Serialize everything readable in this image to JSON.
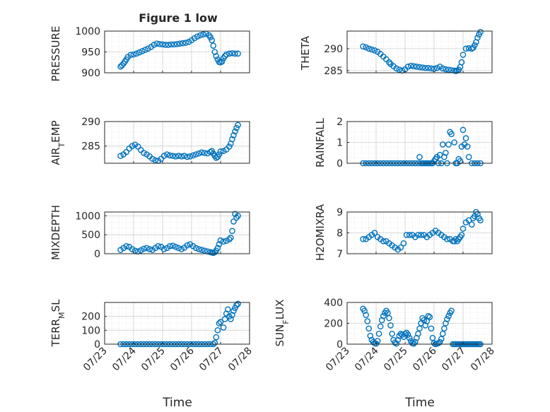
{
  "figure": {
    "title": "Figure 1 low",
    "xlabel": "Time"
  },
  "colors": {
    "marker": "#0072BD",
    "grid": "#d9d9d9",
    "axes": "#262626"
  },
  "chart_data": [
    {
      "type": "scatter",
      "ylabel": "PRESSURE",
      "ylim": [
        900,
        1000
      ],
      "yticks": [
        "900",
        "950",
        "1000"
      ],
      "xlim": [
        "07/23",
        "07/28"
      ],
      "grid": true,
      "x_days": [
        23.55,
        23.6,
        23.65,
        23.7,
        23.75,
        23.8,
        23.9,
        24.0,
        24.1,
        24.2,
        24.3,
        24.4,
        24.5,
        24.6,
        24.7,
        24.8,
        24.9,
        25.0,
        25.1,
        25.2,
        25.3,
        25.4,
        25.5,
        25.6,
        25.7,
        25.8,
        25.9,
        26.0,
        26.1,
        26.2,
        26.3,
        26.4,
        26.5,
        26.6,
        26.65,
        26.7,
        26.75,
        26.8,
        26.85,
        26.9,
        26.95,
        27.0,
        27.05,
        27.1,
        27.15,
        27.2,
        27.3,
        27.4,
        27.5,
        27.6
      ],
      "y": [
        915,
        918,
        922,
        927,
        932,
        938,
        943,
        944,
        946,
        949,
        952,
        955,
        958,
        962,
        967,
        970,
        969,
        968,
        967,
        967,
        968,
        968,
        969,
        970,
        971,
        972,
        974,
        978,
        983,
        987,
        990,
        992,
        994,
        990,
        985,
        978,
        965,
        950,
        940,
        932,
        926,
        925,
        927,
        935,
        940,
        944,
        946,
        947,
        946,
        946
      ]
    },
    {
      "type": "scatter",
      "ylabel": "THETA",
      "ylim": [
        284.5,
        294
      ],
      "yticks": [
        "285",
        "290"
      ],
      "xlim": [
        "07/23",
        "07/28"
      ],
      "grid": true,
      "x_days": [
        23.55,
        23.65,
        23.75,
        23.85,
        23.95,
        24.05,
        24.15,
        24.25,
        24.35,
        24.45,
        24.5,
        24.6,
        24.7,
        24.8,
        24.9,
        25.0,
        25.1,
        25.2,
        25.3,
        25.4,
        25.5,
        25.6,
        25.7,
        25.8,
        25.9,
        26.0,
        26.1,
        26.2,
        26.3,
        26.4,
        26.5,
        26.6,
        26.7,
        26.75,
        26.8,
        26.85,
        26.9,
        26.95,
        27.0,
        27.1,
        27.2,
        27.3,
        27.35,
        27.4,
        27.45,
        27.5,
        27.55,
        27.6
      ],
      "y": [
        290.5,
        290.3,
        290.0,
        289.8,
        289.6,
        289.3,
        288.8,
        288.2,
        287.6,
        286.9,
        286.5,
        286.0,
        285.5,
        285.2,
        285.0,
        285.3,
        285.9,
        286.1,
        286.0,
        285.9,
        285.8,
        285.7,
        285.6,
        285.6,
        285.5,
        285.4,
        285.6,
        285.9,
        285.5,
        285.3,
        285.2,
        285.1,
        285.0,
        284.9,
        285.0,
        285.2,
        285.8,
        286.9,
        288.6,
        290.0,
        290.1,
        290.0,
        290.2,
        290.8,
        291.5,
        292.5,
        293.2,
        293.8
      ]
    },
    {
      "type": "scatter",
      "ylabel": "AIR_TEMP",
      "ylim": [
        281.5,
        290
      ],
      "yticks": [
        "285",
        "290"
      ],
      "xlim": [
        "07/23",
        "07/28"
      ],
      "grid": true,
      "x_days": [
        23.55,
        23.65,
        23.75,
        23.85,
        23.95,
        24.05,
        24.15,
        24.25,
        24.35,
        24.45,
        24.55,
        24.65,
        24.75,
        24.85,
        24.95,
        25.05,
        25.15,
        25.25,
        25.35,
        25.45,
        25.55,
        25.65,
        25.75,
        25.85,
        25.95,
        26.05,
        26.15,
        26.25,
        26.35,
        26.45,
        26.55,
        26.65,
        26.7,
        26.75,
        26.8,
        26.85,
        26.9,
        26.95,
        27.0,
        27.1,
        27.2,
        27.3,
        27.35,
        27.4,
        27.45,
        27.5,
        27.55,
        27.6
      ],
      "y": [
        283.0,
        283.3,
        283.8,
        284.5,
        285.0,
        285.3,
        284.9,
        284.2,
        283.6,
        283.3,
        282.9,
        282.4,
        282.1,
        282.0,
        282.4,
        283.0,
        283.3,
        283.1,
        283.0,
        282.9,
        283.0,
        282.9,
        283.0,
        282.8,
        282.9,
        283.1,
        283.3,
        283.5,
        283.7,
        283.6,
        283.5,
        283.8,
        284.0,
        283.5,
        283.0,
        282.6,
        282.8,
        283.3,
        283.9,
        284.0,
        284.3,
        284.9,
        285.5,
        286.4,
        287.2,
        288.0,
        288.7,
        289.3
      ]
    },
    {
      "type": "scatter",
      "ylabel": "RAINFALL",
      "ylim": [
        0,
        2
      ],
      "yticks": [
        "0",
        "1",
        "2"
      ],
      "xlim": [
        "07/23",
        "07/28"
      ],
      "grid": true,
      "x_days": [
        23.55,
        23.65,
        23.75,
        23.85,
        23.95,
        24.05,
        24.15,
        24.25,
        24.35,
        24.45,
        24.55,
        24.65,
        24.75,
        24.85,
        24.95,
        25.05,
        25.15,
        25.25,
        25.35,
        25.45,
        25.5,
        25.55,
        25.65,
        25.75,
        25.85,
        25.95,
        26.0,
        26.05,
        26.1,
        26.15,
        26.2,
        26.25,
        26.3,
        26.35,
        26.4,
        26.45,
        26.5,
        26.55,
        26.6,
        26.7,
        26.75,
        26.8,
        26.85,
        26.9,
        26.95,
        27.0,
        27.05,
        27.1,
        27.15,
        27.2,
        27.3,
        27.4,
        27.5,
        27.6,
        25.6,
        25.7,
        25.8,
        25.9
      ],
      "y": [
        0,
        0,
        0,
        0,
        0,
        0,
        0,
        0,
        0,
        0,
        0,
        0,
        0,
        0,
        0,
        0,
        0,
        0,
        0,
        0,
        0.3,
        0,
        0,
        0,
        0,
        0,
        0.1,
        0.2,
        0.3,
        0,
        0.4,
        0,
        0.9,
        0.3,
        0.5,
        0,
        0.9,
        1.5,
        1.4,
        1.0,
        0,
        0,
        0.2,
        0.1,
        0.8,
        1.6,
        0.9,
        1.2,
        0.8,
        0.3,
        0,
        0,
        0,
        0,
        0,
        0,
        0,
        0
      ]
    },
    {
      "type": "scatter",
      "ylabel": "MIXDEPTH",
      "ylim": [
        0,
        1100
      ],
      "yticks": [
        "0",
        "500",
        "1000"
      ],
      "xlim": [
        "07/23",
        "07/28"
      ],
      "grid": true,
      "x_days": [
        23.55,
        23.65,
        23.75,
        23.85,
        23.95,
        24.05,
        24.15,
        24.25,
        24.35,
        24.45,
        24.55,
        24.65,
        24.75,
        24.85,
        24.95,
        25.05,
        25.15,
        25.25,
        25.35,
        25.45,
        25.55,
        25.65,
        25.75,
        25.85,
        25.95,
        26.05,
        26.15,
        26.25,
        26.35,
        26.45,
        26.55,
        26.65,
        26.7,
        26.75,
        26.8,
        26.85,
        26.9,
        26.95,
        27.0,
        27.1,
        27.2,
        27.3,
        27.35,
        27.4,
        27.45,
        27.5,
        27.55,
        27.6
      ],
      "y": [
        100,
        150,
        200,
        180,
        120,
        80,
        60,
        90,
        130,
        150,
        120,
        100,
        150,
        200,
        180,
        120,
        150,
        200,
        210,
        180,
        150,
        120,
        160,
        220,
        250,
        200,
        150,
        120,
        100,
        80,
        60,
        40,
        30,
        20,
        40,
        80,
        150,
        250,
        350,
        320,
        340,
        380,
        420,
        600,
        850,
        1050,
        950,
        1000
      ]
    },
    {
      "type": "scatter",
      "ylabel": "H2OMIXRA",
      "ylim": [
        7,
        9
      ],
      "yticks": [
        "7",
        "8",
        "9"
      ],
      "xlim": [
        "07/23",
        "07/28"
      ],
      "grid": true,
      "x_days": [
        23.55,
        23.65,
        23.75,
        23.85,
        23.95,
        24.05,
        24.15,
        24.25,
        24.35,
        24.45,
        24.55,
        24.65,
        24.75,
        24.85,
        24.95,
        25.05,
        25.15,
        25.25,
        25.35,
        25.45,
        25.55,
        25.65,
        25.75,
        25.85,
        25.95,
        26.05,
        26.15,
        26.25,
        26.35,
        26.45,
        26.55,
        26.65,
        26.7,
        26.75,
        26.8,
        26.85,
        26.9,
        26.95,
        27.0,
        27.1,
        27.2,
        27.3,
        27.35,
        27.4,
        27.45,
        27.5,
        27.55,
        27.6
      ],
      "y": [
        7.7,
        7.7,
        7.8,
        7.9,
        8.0,
        7.8,
        7.7,
        7.6,
        7.6,
        7.5,
        7.4,
        7.3,
        7.2,
        7.3,
        7.5,
        7.9,
        7.9,
        7.9,
        7.8,
        7.9,
        7.9,
        7.9,
        7.8,
        7.9,
        8.0,
        8.1,
        8.0,
        7.9,
        7.8,
        7.7,
        7.7,
        7.6,
        7.6,
        7.7,
        7.6,
        7.7,
        7.8,
        7.9,
        8.2,
        8.5,
        8.6,
        8.4,
        8.7,
        8.8,
        9.0,
        8.9,
        8.7,
        8.6
      ]
    },
    {
      "type": "scatter",
      "ylabel": "TERR_MSL",
      "ylim": [
        0,
        300
      ],
      "yticks": [
        "0",
        "100",
        "200"
      ],
      "xlim": [
        "07/23",
        "07/28"
      ],
      "grid": true,
      "x_days": [
        23.55,
        23.65,
        23.75,
        23.85,
        23.95,
        24.05,
        24.15,
        24.25,
        24.35,
        24.45,
        24.55,
        24.65,
        24.75,
        24.85,
        24.95,
        25.05,
        25.15,
        25.25,
        25.35,
        25.45,
        25.55,
        25.65,
        25.75,
        25.85,
        25.95,
        26.05,
        26.15,
        26.25,
        26.35,
        26.45,
        26.55,
        26.65,
        26.75,
        26.8,
        26.85,
        26.9,
        26.95,
        27.0,
        27.1,
        27.15,
        27.2,
        27.25,
        27.3,
        27.35,
        27.4,
        27.45,
        27.5,
        27.55,
        27.6
      ],
      "y": [
        0,
        0,
        0,
        0,
        0,
        0,
        0,
        0,
        0,
        0,
        0,
        0,
        0,
        0,
        0,
        0,
        0,
        0,
        0,
        0,
        0,
        0,
        0,
        0,
        0,
        0,
        0,
        0,
        0,
        0,
        0,
        0,
        0,
        10,
        50,
        100,
        150,
        160,
        120,
        180,
        220,
        250,
        200,
        180,
        210,
        240,
        260,
        280,
        290
      ]
    },
    {
      "type": "scatter",
      "ylabel": "SUN_FLUX",
      "ylim": [
        0,
        400
      ],
      "yticks": [
        "0",
        "200",
        "400"
      ],
      "xlim": [
        "07/23",
        "07/28"
      ],
      "grid": true,
      "x_days": [
        23.55,
        23.6,
        23.65,
        23.7,
        23.75,
        23.8,
        23.85,
        23.9,
        23.95,
        24.0,
        24.05,
        24.1,
        24.15,
        24.2,
        24.25,
        24.3,
        24.35,
        24.4,
        24.45,
        24.5,
        24.55,
        24.6,
        24.65,
        24.7,
        24.75,
        24.8,
        24.85,
        24.9,
        24.95,
        25.0,
        25.05,
        25.1,
        25.15,
        25.2,
        25.25,
        25.3,
        25.35,
        25.4,
        25.45,
        25.5,
        25.55,
        25.6,
        25.65,
        25.7,
        25.75,
        25.8,
        25.85,
        25.9,
        25.95,
        26.0,
        26.05,
        26.1,
        26.15,
        26.2,
        26.25,
        26.3,
        26.35,
        26.4,
        26.45,
        26.5,
        26.55,
        26.6,
        26.65,
        26.7,
        26.75,
        26.8,
        26.85,
        26.9,
        26.95,
        27.0,
        27.05,
        27.1,
        27.15,
        27.2,
        27.25,
        27.3,
        27.35,
        27.4,
        27.45,
        27.5,
        27.55,
        27.6
      ],
      "y": [
        340,
        320,
        280,
        220,
        150,
        80,
        40,
        20,
        10,
        5,
        30,
        100,
        170,
        230,
        270,
        300,
        320,
        300,
        250,
        180,
        100,
        40,
        15,
        5,
        40,
        80,
        100,
        90,
        70,
        100,
        110,
        90,
        60,
        30,
        10,
        5,
        20,
        60,
        100,
        150,
        200,
        250,
        230,
        180,
        220,
        270,
        260,
        150,
        60,
        10,
        0,
        5,
        10,
        20,
        50,
        100,
        150,
        200,
        240,
        270,
        300,
        320,
        0,
        0,
        0,
        0,
        0,
        0,
        0,
        0,
        0,
        0,
        0,
        0,
        0,
        0,
        0,
        0,
        0,
        0,
        0,
        0
      ]
    }
  ]
}
